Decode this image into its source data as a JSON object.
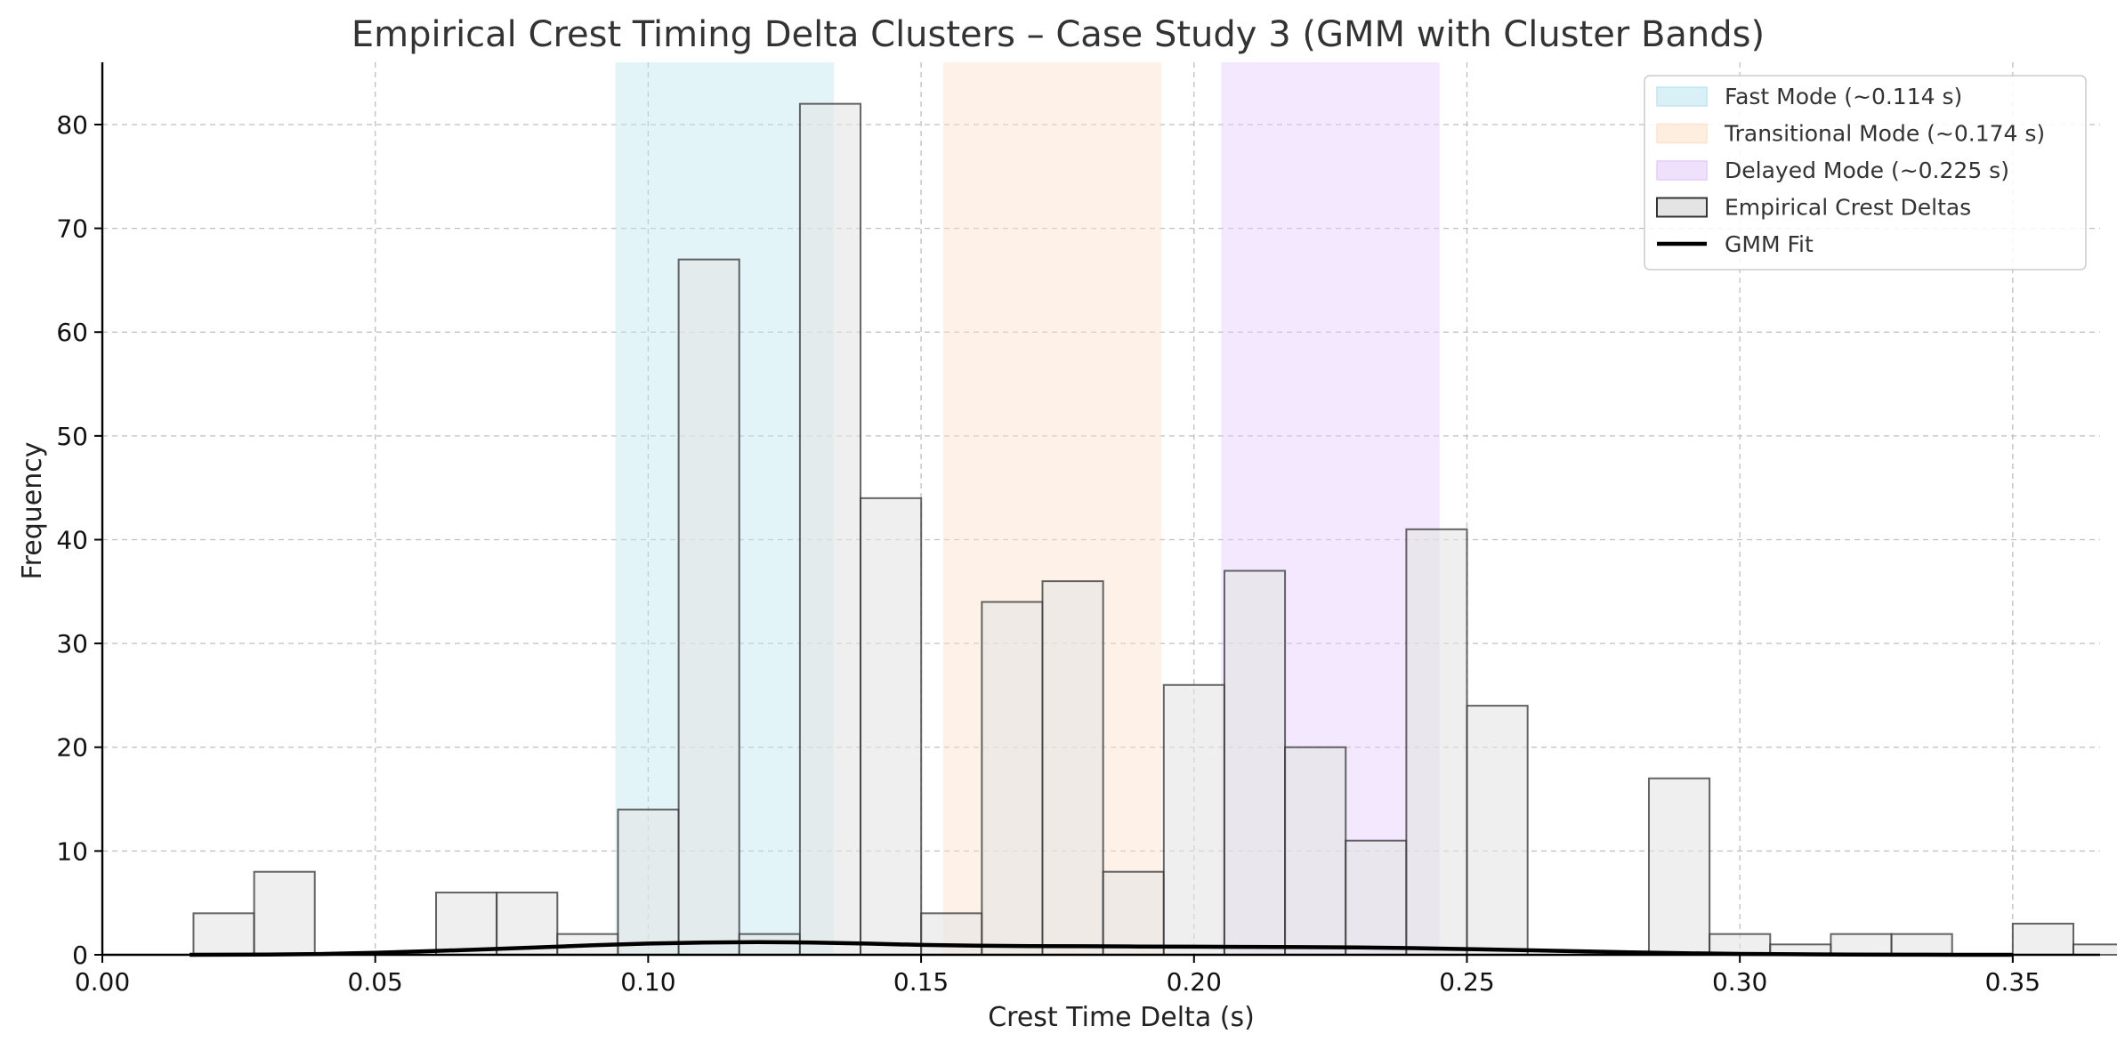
{
  "chart_data": {
    "type": "bar",
    "title": "Empirical Crest Timing Delta Clusters – Case Study 3 (GMM with Cluster Bands)",
    "xlabel": "Crest Time Delta (s)",
    "ylabel": "Frequency",
    "xlim": [
      0.0,
      0.366
    ],
    "ylim": [
      0,
      86
    ],
    "x_ticks": [
      "0.00",
      "0.05",
      "0.10",
      "0.15",
      "0.20",
      "0.25",
      "0.30",
      "0.35"
    ],
    "y_ticks": [
      "0",
      "10",
      "20",
      "30",
      "40",
      "50",
      "60",
      "70",
      "80"
    ],
    "grid": true,
    "legend_position": "top-right",
    "bands": [
      {
        "name": "Fast Mode (~0.114 s)",
        "from": 0.094,
        "to": 0.134,
        "color": "#bfe6f0"
      },
      {
        "name": "Transitional Mode (~0.174 s)",
        "from": 0.154,
        "to": 0.194,
        "color": "#fde3cc"
      },
      {
        "name": "Delayed Mode (~0.225 s)",
        "from": 0.205,
        "to": 0.245,
        "color": "#e5ccfa"
      }
    ],
    "histogram": {
      "name": "Empirical Crest Deltas",
      "bin_start": 0.0167,
      "bin_width": 0.01111,
      "counts": [
        4,
        8,
        0,
        0,
        6,
        6,
        2,
        14,
        67,
        2,
        82,
        44,
        4,
        34,
        36,
        8,
        26,
        37,
        20,
        11,
        41,
        24,
        0,
        0,
        17,
        2,
        1,
        2,
        2,
        0,
        3,
        1
      ],
      "color": "#e4e4e4"
    },
    "gmm_fit": {
      "name": "GMM Fit",
      "x": [
        0.016,
        0.03,
        0.04,
        0.05,
        0.06,
        0.07,
        0.08,
        0.09,
        0.1,
        0.11,
        0.12,
        0.13,
        0.14,
        0.15,
        0.16,
        0.17,
        0.18,
        0.19,
        0.2,
        0.21,
        0.22,
        0.23,
        0.24,
        0.25,
        0.26,
        0.27,
        0.28,
        0.29,
        0.3,
        0.31,
        0.32,
        0.33,
        0.34,
        0.35
      ],
      "y": [
        0.0,
        0.02,
        0.08,
        0.2,
        0.35,
        0.52,
        0.72,
        0.92,
        1.08,
        1.18,
        1.22,
        1.18,
        1.08,
        0.95,
        0.88,
        0.84,
        0.82,
        0.8,
        0.78,
        0.76,
        0.74,
        0.7,
        0.64,
        0.55,
        0.45,
        0.34,
        0.24,
        0.15,
        0.09,
        0.05,
        0.03,
        0.01,
        0.0,
        0.0
      ],
      "color": "#000000"
    }
  }
}
